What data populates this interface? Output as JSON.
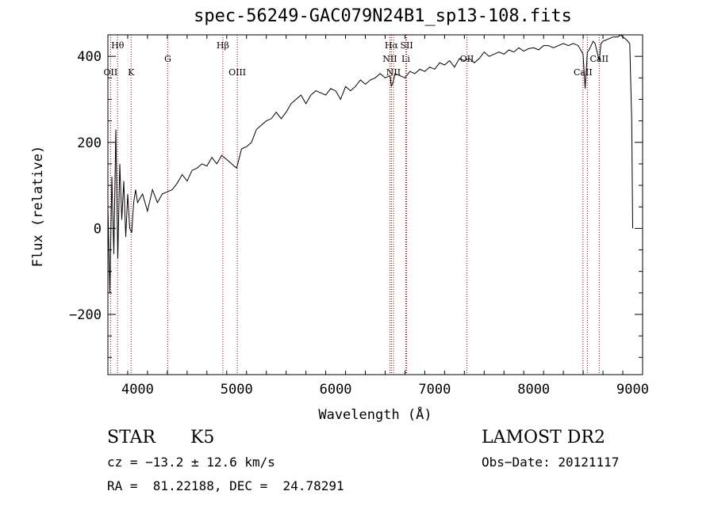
{
  "header": {
    "title": "spec-56249-GAC079N24B1_sp13-108.fits"
  },
  "chart_data": {
    "type": "line",
    "title": "spec-56249-GAC079N24B1_sp13-108.fits",
    "xlabel": "Wavelength (Å)",
    "ylabel": "Flux (relative)",
    "xlim": [
      3700,
      9100
    ],
    "ylim": [
      -340,
      450
    ],
    "x_ticks": [
      4000,
      5000,
      6000,
      7000,
      8000,
      9000
    ],
    "y_ticks": [
      -200,
      0,
      200,
      400
    ],
    "series": [
      {
        "x": [
          3700,
          3720,
          3740,
          3760,
          3780,
          3800,
          3820,
          3840,
          3860,
          3880,
          3900,
          3920,
          3940,
          3960,
          3980,
          4000,
          4050,
          4100,
          4150,
          4200,
          4250,
          4300,
          4350,
          4400,
          4450,
          4500,
          4550,
          4600,
          4650,
          4700,
          4750,
          4800,
          4850,
          4900,
          4950,
          5000,
          5050,
          5100,
          5150,
          5200,
          5250,
          5300,
          5350,
          5400,
          5450,
          5500,
          5550,
          5600,
          5650,
          5700,
          5750,
          5800,
          5850,
          5900,
          5950,
          6000,
          6050,
          6100,
          6150,
          6200,
          6250,
          6300,
          6350,
          6400,
          6450,
          6500,
          6550,
          6563,
          6580,
          6600,
          6650,
          6700,
          6750,
          6800,
          6850,
          6900,
          6950,
          7000,
          7050,
          7100,
          7150,
          7200,
          7250,
          7300,
          7350,
          7400,
          7450,
          7500,
          7550,
          7600,
          7650,
          7700,
          7750,
          7800,
          7850,
          7900,
          7950,
          8000,
          8050,
          8100,
          8150,
          8200,
          8250,
          8300,
          8350,
          8400,
          8450,
          8498,
          8520,
          8542,
          8560,
          8600,
          8620,
          8662,
          8680,
          8700,
          8750,
          8800,
          8850,
          8880,
          8900,
          8930,
          8950,
          8970,
          8990,
          9000
        ],
        "y": [
          50,
          -150,
          120,
          -60,
          230,
          -70,
          150,
          20,
          110,
          -20,
          80,
          0,
          -10,
          60,
          90,
          60,
          80,
          40,
          90,
          60,
          80,
          85,
          90,
          105,
          125,
          110,
          135,
          140,
          150,
          145,
          165,
          150,
          170,
          160,
          150,
          140,
          185,
          190,
          200,
          230,
          240,
          250,
          255,
          270,
          255,
          270,
          290,
          300,
          310,
          290,
          310,
          320,
          315,
          310,
          325,
          320,
          300,
          330,
          320,
          330,
          345,
          335,
          345,
          350,
          360,
          350,
          355,
          330,
          340,
          360,
          355,
          350,
          365,
          360,
          370,
          365,
          375,
          370,
          385,
          380,
          390,
          375,
          395,
          390,
          395,
          385,
          395,
          410,
          400,
          405,
          410,
          405,
          415,
          410,
          420,
          412,
          418,
          420,
          415,
          425,
          425,
          420,
          425,
          430,
          425,
          430,
          425,
          405,
          325,
          410,
          415,
          435,
          430,
          390,
          430,
          435,
          440,
          445,
          445,
          450,
          445,
          440,
          435,
          430,
          250,
          0
        ]
      }
    ],
    "lines": [
      {
        "label": "Hθ",
        "x": 3798,
        "row": "top"
      },
      {
        "label": "OII",
        "x": 3727,
        "row": "low"
      },
      {
        "label": "K",
        "x": 3934,
        "row": "low"
      },
      {
        "label": "G",
        "x": 4305,
        "row": "mid"
      },
      {
        "label": "Hβ",
        "x": 4861,
        "row": "top"
      },
      {
        "label": "OIII",
        "x": 5007,
        "row": "low"
      },
      {
        "label": "Hα",
        "x": 6563,
        "row": "top"
      },
      {
        "label": "SII",
        "x": 6717,
        "row": "top"
      },
      {
        "label": "NII",
        "x": 6548,
        "row": "mid"
      },
      {
        "label": "Li",
        "x": 6708,
        "row": "mid"
      },
      {
        "label": "NII",
        "x": 6584,
        "row": "low"
      },
      {
        "label": "OII",
        "x": 7325,
        "row": "mid"
      },
      {
        "label": "CaII",
        "x": 8498,
        "row": "low"
      },
      {
        "label": "CaII",
        "x": 8662,
        "row": "mid"
      },
      {
        "label": "",
        "x": 8542,
        "row": "none"
      }
    ],
    "line_color": "#8b0000"
  },
  "footer": {
    "object_class": "STAR",
    "subclass": "K5",
    "survey": "LAMOST DR2",
    "cz": "cz = −13.2 ± 12.6 km/s",
    "obs_date": "Obs−Date: 20121117",
    "coords": "RA =  81.22188, DEC =  24.78291"
  }
}
